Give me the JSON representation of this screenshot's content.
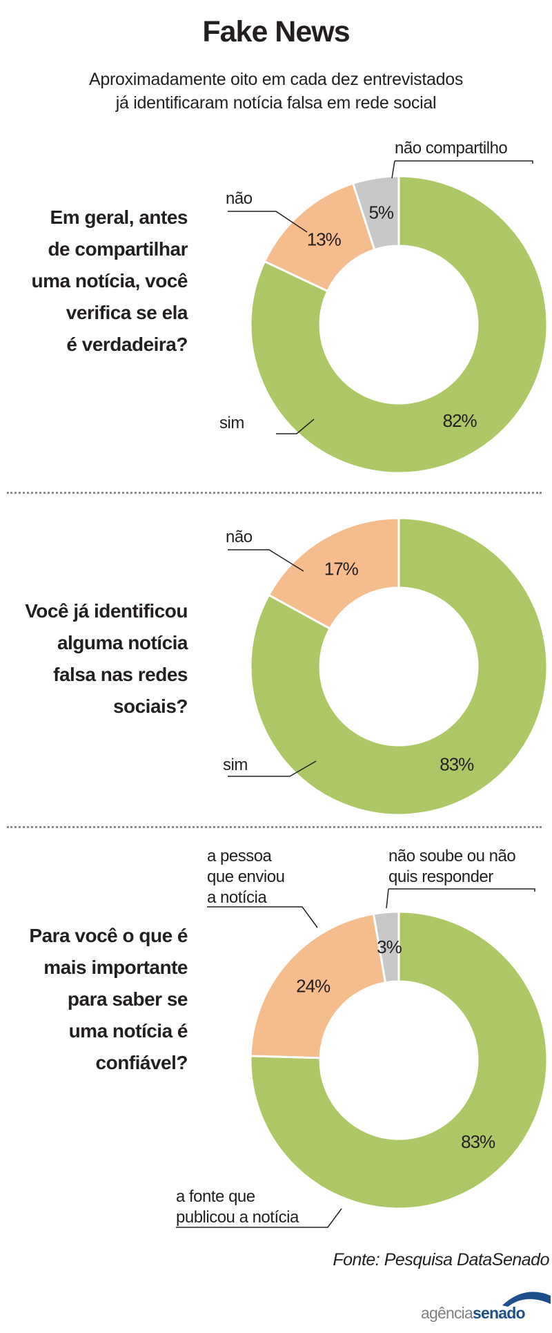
{
  "title": "Fake News",
  "subtitle_line1": "Aproximadamente oito em cada dez entrevistados",
  "subtitle_line2": "já identificaram notícia falsa em rede social",
  "source": "Fonte: Pesquisa DataSenado",
  "logo": {
    "part1": "agência",
    "part2": "senado"
  },
  "colors": {
    "sim": "#adc767",
    "nao": "#f5bc8d",
    "outro": "#c8c8c8",
    "text": "#231f20",
    "logo_blue": "#1c4f8c"
  },
  "chart_data": [
    {
      "type": "pie",
      "question": [
        "Em geral, antes",
        "de compartilhar",
        "uma notícia, você",
        "verifica se ela",
        "é verdadeira?"
      ],
      "slices": [
        {
          "label": [
            "sim"
          ],
          "value": 82,
          "value_label": "82%",
          "color": "#adc767"
        },
        {
          "label": [
            "não"
          ],
          "value": 13,
          "value_label": "13%",
          "color": "#f5bc8d"
        },
        {
          "label": [
            "não compartilho"
          ],
          "value": 5,
          "value_label": "5%",
          "color": "#c8c8c8"
        }
      ]
    },
    {
      "type": "pie",
      "question": [
        "Você já identificou",
        "alguma notícia",
        "falsa nas redes",
        "sociais?"
      ],
      "slices": [
        {
          "label": [
            "sim"
          ],
          "value": 83,
          "value_label": "83%",
          "color": "#adc767"
        },
        {
          "label": [
            "não"
          ],
          "value": 17,
          "value_label": "17%",
          "color": "#f5bc8d"
        }
      ]
    },
    {
      "type": "pie",
      "question": [
        "Para você o que é",
        "mais importante",
        "para saber se",
        "uma notícia é",
        "confiável?"
      ],
      "slices": [
        {
          "label": [
            "a fonte que",
            "publicou a notícia"
          ],
          "value": 83,
          "value_label": "83%",
          "color": "#adc767"
        },
        {
          "label": [
            "a pessoa",
            "que enviou",
            "a notícia"
          ],
          "value": 24,
          "value_label": "24%",
          "color": "#f5bc8d"
        },
        {
          "label": [
            "não soube ou não",
            "quis responder"
          ],
          "value": 3,
          "value_label": "3%",
          "color": "#c8c8c8"
        }
      ]
    }
  ]
}
